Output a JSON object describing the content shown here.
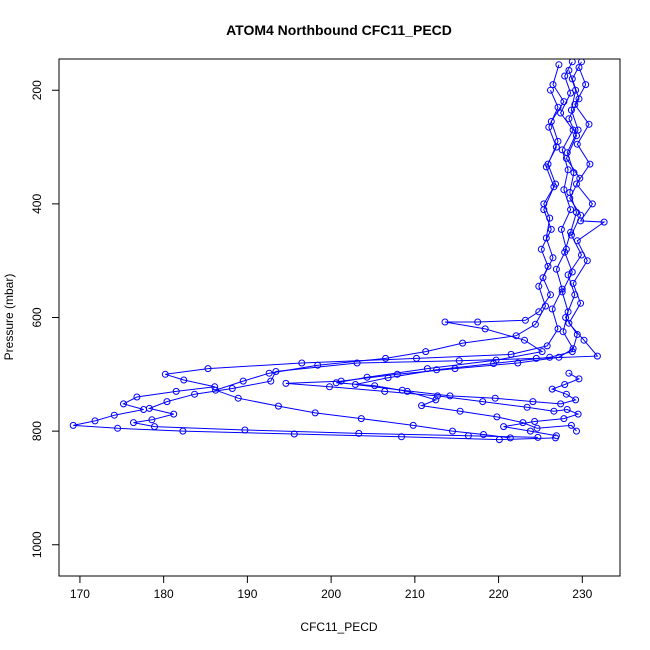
{
  "chart_data": {
    "type": "line",
    "title": "ATOM4 Northbound CFC11_PECD",
    "xlabel": "CFC11_PECD",
    "ylabel": "Pressure (mbar)",
    "xlim": [
      167.5,
      234.5
    ],
    "ylim": [
      1055,
      145
    ],
    "y_reversed": true,
    "grid": false,
    "legend": "none",
    "x_ticks": [
      170,
      180,
      190,
      200,
      210,
      220,
      230
    ],
    "y_ticks": [
      200,
      400,
      600,
      800,
      1000
    ],
    "color": "#0000ff",
    "marker": "open-circle",
    "series": [
      {
        "values": [
          [
            228.8,
            150
          ],
          [
            227.9,
            175
          ],
          [
            228.6,
            205
          ],
          [
            227.4,
            240
          ],
          [
            228.9,
            270
          ],
          [
            227.6,
            305
          ],
          [
            228.3,
            340
          ],
          [
            227.8,
            375
          ],
          [
            228.6,
            410
          ],
          [
            227.5,
            445
          ],
          [
            228.1,
            480
          ],
          [
            226.9,
            515
          ],
          [
            227.6,
            550
          ],
          [
            226.4,
            585
          ],
          [
            227.1,
            620
          ],
          [
            225.8,
            650
          ],
          [
            221.5,
            665
          ],
          [
            210.2,
            672
          ],
          [
            196.5,
            680
          ],
          [
            185.3,
            690
          ],
          [
            180.2,
            700
          ],
          [
            182.4,
            710
          ],
          [
            186.1,
            722
          ],
          [
            181.5,
            730
          ],
          [
            176.8,
            740
          ],
          [
            175.2,
            752
          ],
          [
            177.6,
            762
          ],
          [
            174.1,
            772
          ],
          [
            171.8,
            782
          ],
          [
            169.2,
            790
          ],
          [
            174.5,
            795
          ],
          [
            182.3,
            800
          ],
          [
            195.6,
            805
          ],
          [
            208.4,
            810
          ],
          [
            220.1,
            815
          ],
          [
            226.8,
            812
          ]
        ]
      },
      {
        "values": [
          [
            229.6,
            160
          ],
          [
            230.4,
            190
          ],
          [
            229.1,
            225
          ],
          [
            230.8,
            260
          ],
          [
            229.4,
            295
          ],
          [
            230.9,
            330
          ],
          [
            229.3,
            365
          ],
          [
            231.2,
            400
          ],
          [
            229.8,
            430
          ],
          [
            232.6,
            432
          ],
          [
            229.4,
            465
          ],
          [
            230.6,
            500
          ],
          [
            228.9,
            540
          ],
          [
            229.8,
            575
          ],
          [
            228.4,
            610
          ],
          [
            230.2,
            640
          ],
          [
            231.8,
            668
          ],
          [
            224.5,
            672
          ],
          [
            215.3,
            676
          ],
          [
            203.1,
            680
          ],
          [
            193.4,
            695
          ],
          [
            192.8,
            712
          ],
          [
            188.2,
            725
          ],
          [
            183.7,
            735
          ],
          [
            180.4,
            748
          ],
          [
            178.3,
            760
          ],
          [
            181.2,
            770
          ],
          [
            178.6,
            780
          ],
          [
            176.4,
            785
          ],
          [
            178.9,
            792
          ],
          [
            189.7,
            798
          ],
          [
            203.3,
            804
          ],
          [
            216.4,
            808
          ],
          [
            224.7,
            811
          ]
        ]
      },
      {
        "values": [
          [
            227.2,
            155
          ],
          [
            226.5,
            190
          ],
          [
            227.8,
            220
          ],
          [
            226.3,
            255
          ],
          [
            227.1,
            290
          ],
          [
            225.9,
            330
          ],
          [
            226.8,
            365
          ],
          [
            225.4,
            400
          ],
          [
            226.1,
            425
          ],
          [
            225.7,
            460
          ],
          [
            226.5,
            495
          ],
          [
            225.3,
            530
          ],
          [
            226.2,
            560
          ],
          [
            224.8,
            590
          ],
          [
            223.2,
            605
          ],
          [
            217.5,
            608
          ],
          [
            213.6,
            608
          ],
          [
            218.4,
            620
          ],
          [
            223.1,
            640
          ],
          [
            225.2,
            660
          ],
          [
            219.7,
            675
          ],
          [
            211.5,
            690
          ],
          [
            204.3,
            705
          ],
          [
            200.6,
            715
          ],
          [
            205.2,
            720
          ],
          [
            209.1,
            730
          ],
          [
            212.5,
            745
          ],
          [
            210.8,
            755
          ],
          [
            215.4,
            765
          ],
          [
            219.8,
            775
          ],
          [
            222.9,
            785
          ],
          [
            224.6,
            795
          ],
          [
            228.7,
            790
          ],
          [
            229.3,
            800
          ]
        ]
      },
      {
        "values": [
          [
            228.4,
            165
          ],
          [
            229.2,
            200
          ],
          [
            228.7,
            235
          ],
          [
            229.5,
            270
          ],
          [
            228.2,
            310
          ],
          [
            229.0,
            345
          ],
          [
            228.5,
            380
          ],
          [
            229.3,
            415
          ],
          [
            228.6,
            450
          ],
          [
            227.9,
            485
          ],
          [
            228.8,
            520
          ],
          [
            227.6,
            555
          ],
          [
            228.3,
            590
          ],
          [
            227.7,
            625
          ],
          [
            228.9,
            655
          ],
          [
            227.2,
            670
          ],
          [
            222.3,
            680
          ],
          [
            214.8,
            690
          ],
          [
            207.9,
            700
          ],
          [
            201.2,
            712
          ],
          [
            194.6,
            716
          ],
          [
            199.8,
            722
          ],
          [
            206.4,
            730
          ],
          [
            212.7,
            738
          ],
          [
            218.1,
            748
          ],
          [
            223.4,
            758
          ],
          [
            226.6,
            765
          ],
          [
            228.2,
            762
          ],
          [
            229.5,
            770
          ],
          [
            227.8,
            778
          ],
          [
            224.3,
            783
          ],
          [
            220.6,
            792
          ],
          [
            223.8,
            800
          ],
          [
            226.9,
            808
          ]
        ]
      },
      {
        "values": [
          [
            229.9,
            150
          ],
          [
            228.8,
            180
          ],
          [
            229.6,
            215
          ],
          [
            228.4,
            250
          ],
          [
            229.3,
            280
          ],
          [
            228.1,
            320
          ],
          [
            229.7,
            355
          ],
          [
            228.5,
            390
          ],
          [
            229.8,
            420
          ],
          [
            228.7,
            455
          ],
          [
            229.9,
            490
          ],
          [
            228.3,
            525
          ],
          [
            229.1,
            560
          ],
          [
            228.0,
            600
          ],
          [
            229.4,
            630
          ],
          [
            228.8,
            660
          ],
          [
            226.1,
            670
          ],
          [
            219.4,
            681
          ],
          [
            212.6,
            692
          ],
          [
            206.8,
            706
          ],
          [
            202.9,
            718
          ],
          [
            208.5,
            728
          ],
          [
            214.2,
            738
          ],
          [
            219.6,
            742
          ],
          [
            224.1,
            748
          ],
          [
            227.4,
            752
          ],
          [
            229.2,
            745
          ],
          [
            228.1,
            735
          ],
          [
            226.4,
            726
          ],
          [
            227.9,
            718
          ],
          [
            229.6,
            708
          ],
          [
            228.4,
            698
          ]
        ]
      },
      {
        "values": [
          [
            226.2,
            200
          ],
          [
            227.1,
            230
          ],
          [
            226.0,
            265
          ],
          [
            226.9,
            300
          ],
          [
            225.7,
            335
          ],
          [
            226.6,
            370
          ],
          [
            225.4,
            410
          ],
          [
            226.3,
            445
          ],
          [
            225.1,
            480
          ],
          [
            225.9,
            510
          ],
          [
            224.8,
            545
          ],
          [
            225.6,
            580
          ],
          [
            224.4,
            612
          ],
          [
            222.1,
            632
          ],
          [
            215.7,
            645
          ],
          [
            211.3,
            660
          ],
          [
            206.5,
            672
          ],
          [
            198.4,
            684
          ],
          [
            192.6,
            698
          ],
          [
            189.5,
            712
          ],
          [
            186.2,
            728
          ],
          [
            188.9,
            742
          ],
          [
            193.7,
            756
          ],
          [
            198.1,
            768
          ],
          [
            203.6,
            778
          ],
          [
            209.8,
            790
          ],
          [
            214.5,
            800
          ],
          [
            218.2,
            806
          ],
          [
            221.4,
            812
          ]
        ]
      }
    ]
  }
}
